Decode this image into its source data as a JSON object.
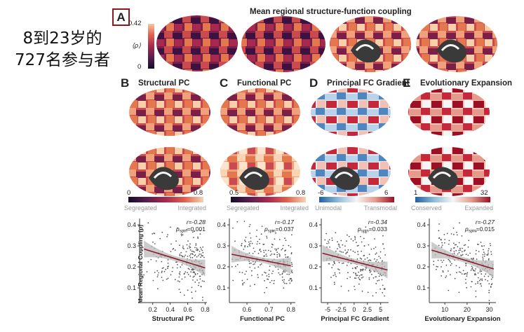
{
  "side_note": [
    "8到23岁的",
    "727名参与者"
  ],
  "panel_a": {
    "letter": "A",
    "title": "Mean regional structure-function coupling",
    "colorbar": {
      "max": "0.42",
      "min": "0",
      "label": "⟨ρ⟩"
    }
  },
  "panels": [
    {
      "letter": "B",
      "title": "Structural PC",
      "colorbar": {
        "min": "0",
        "max": "0.8",
        "low_label": "Segregated",
        "high_label": "Integrated",
        "colors": [
          "#140b2e",
          "#5a1d4e",
          "#a8294f",
          "#e0614c",
          "#f8d3b4"
        ]
      },
      "scatter": {
        "r_text": "r=-0.28",
        "p_text": "p",
        "p_sub": "spin",
        "p_val": "=0.001",
        "xlabel": "Structural PC",
        "xticks": [
          "0.2",
          "0.4",
          "0.6",
          "0.8"
        ]
      }
    },
    {
      "letter": "C",
      "title": "Functional PC",
      "colorbar": {
        "min": "0.5",
        "max": "0.8",
        "low_label": "Segregated",
        "high_label": "Integrated",
        "colors": [
          "#140b2e",
          "#5a1d4e",
          "#a8294f",
          "#e0614c",
          "#f8d3b4"
        ]
      },
      "scatter": {
        "r_text": "r=-0.17",
        "p_text": "p",
        "p_sub": "spin",
        "p_val": "=0.037",
        "xlabel": "Functional PC",
        "xticks": [
          "0.6",
          "0.7",
          "0.8"
        ]
      }
    },
    {
      "letter": "D",
      "title": "Principal FC Gradient",
      "colorbar": {
        "min": "-6",
        "max": "6",
        "low_label": "Unimodal",
        "high_label": "Transmodal",
        "colors": [
          "#1f5fa3",
          "#8fbbdb",
          "#f5f5f5",
          "#e59a8c",
          "#9d0f24"
        ]
      },
      "scatter": {
        "r_text": "r=-0.34",
        "p_text": "p",
        "p_sub": "spin",
        "p_val": "=0.033",
        "xlabel": "Principal FC Gradient",
        "xticks": [
          "-5",
          "-2.5",
          "0",
          "2.5",
          "5"
        ]
      }
    },
    {
      "letter": "E",
      "title": "Evolutionary Expansion",
      "colorbar": {
        "min": "1",
        "max": "32",
        "low_label": "Conserved",
        "high_label": "Expanded",
        "colors": [
          "#1f5fa3",
          "#8fbbdb",
          "#f5f5f5",
          "#e59a8c",
          "#9d0f24"
        ]
      },
      "scatter": {
        "r_text": "r=-0.27",
        "p_text": "p",
        "p_sub": "spin",
        "p_val": "=0.015",
        "xlabel": "Evolutionary Expansion",
        "xticks": [
          "10",
          "20",
          "30"
        ]
      }
    }
  ],
  "shared_ylabel": "Mean Regional Coupling (ρ)",
  "yticks": [
    "0.1",
    "0.2",
    "0.3",
    "0.4"
  ],
  "chart_data": [
    {
      "type": "scatter",
      "xlabel": "Structural PC",
      "ylabel": "Mean Regional Coupling (ρ)",
      "xlim": [
        0.05,
        0.82
      ],
      "ylim": [
        0.03,
        0.43
      ],
      "fit": {
        "x": [
          0.1,
          0.8
        ],
        "y": [
          0.285,
          0.195
        ]
      },
      "annotation": "r=-0.28, p_spin=0.001"
    },
    {
      "type": "scatter",
      "xlabel": "Functional PC",
      "ylabel": "Mean Regional Coupling (ρ)",
      "xlim": [
        0.52,
        0.82
      ],
      "ylim": [
        0.03,
        0.43
      ],
      "fit": {
        "x": [
          0.53,
          0.8
        ],
        "y": [
          0.26,
          0.205
        ]
      },
      "annotation": "r=-0.17, p_spin=0.037"
    },
    {
      "type": "scatter",
      "xlabel": "Principal FC Gradient",
      "ylabel": "Mean Regional Coupling (ρ)",
      "xlim": [
        -6.2,
        6.5
      ],
      "ylim": [
        0.03,
        0.43
      ],
      "fit": {
        "x": [
          -6,
          6.3
        ],
        "y": [
          0.265,
          0.185
        ]
      },
      "annotation": "r=-0.34, p_spin=0.033"
    },
    {
      "type": "scatter",
      "xlabel": "Evolutionary Expansion",
      "ylabel": "Mean Regional Coupling (ρ)",
      "xlim": [
        3,
        33
      ],
      "ylim": [
        0.03,
        0.43
      ],
      "fit": {
        "x": [
          4,
          32
        ],
        "y": [
          0.28,
          0.19
        ]
      },
      "annotation": "r=-0.27, p_spin=0.015"
    }
  ]
}
